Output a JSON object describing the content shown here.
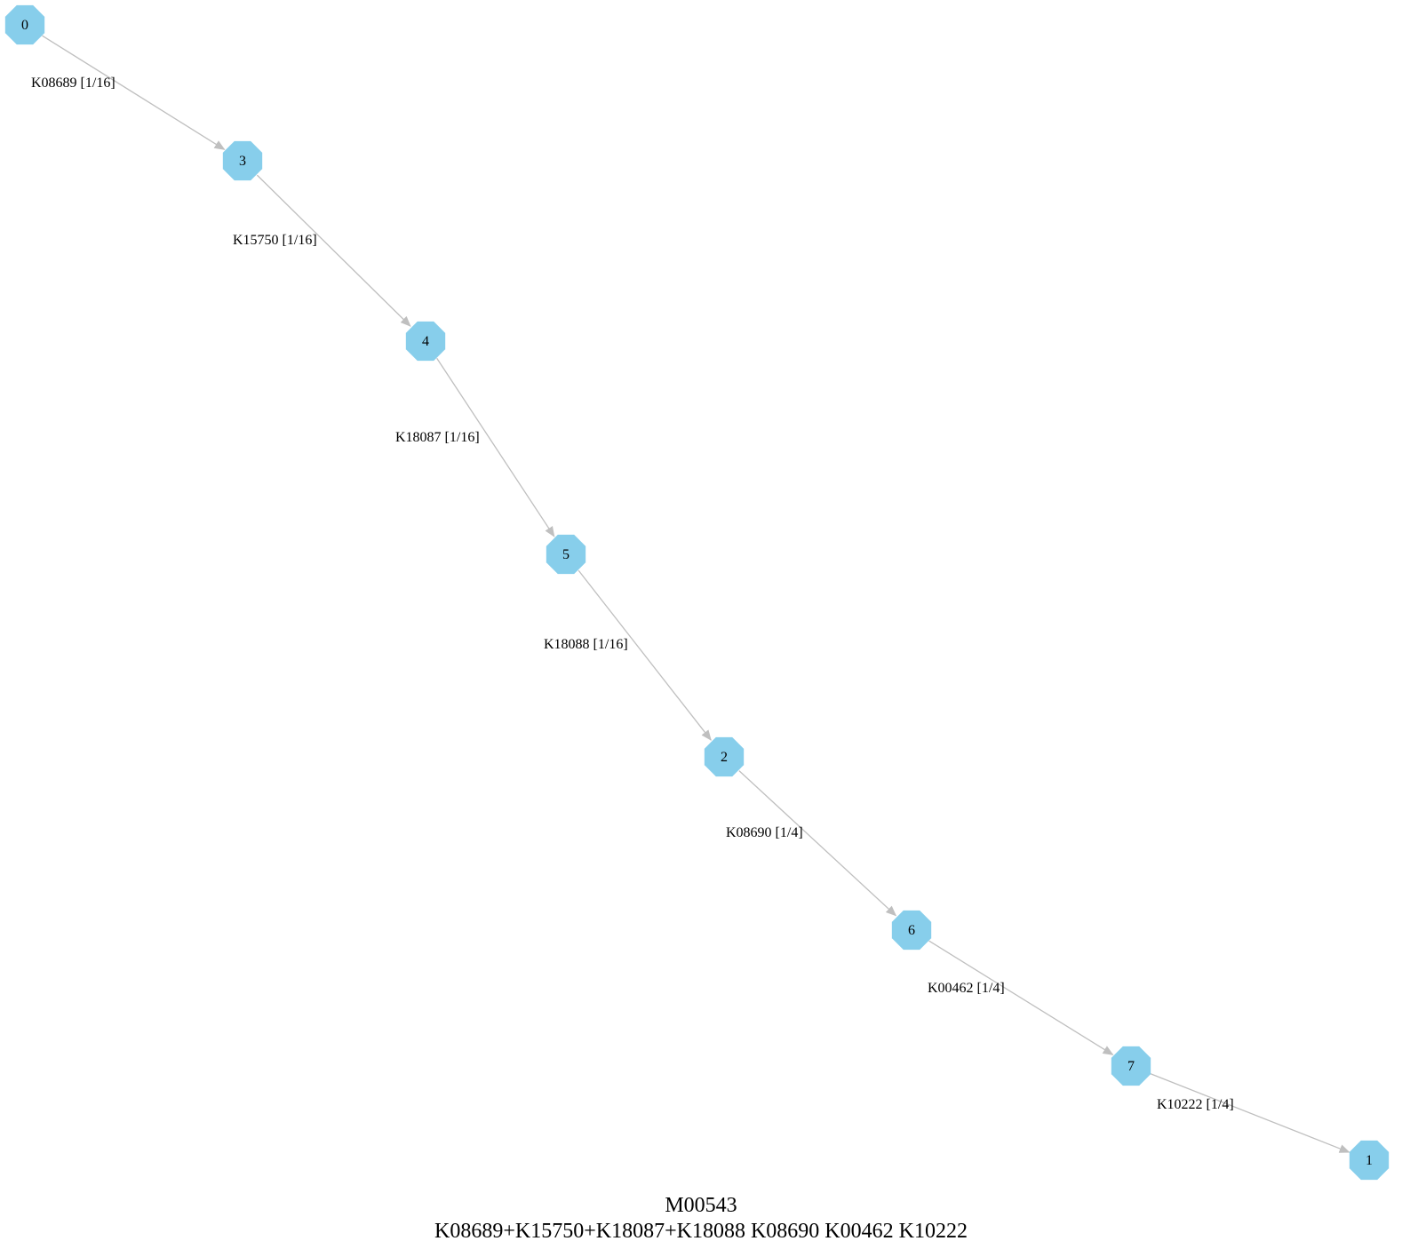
{
  "colors": {
    "node_fill": "#87ceeb",
    "edge": "#bfbfbf",
    "text": "#000000",
    "background": "#ffffff"
  },
  "node_shape": "octagon",
  "nodes": [
    {
      "id": "0"
    },
    {
      "id": "3"
    },
    {
      "id": "4"
    },
    {
      "id": "5"
    },
    {
      "id": "2"
    },
    {
      "id": "6"
    },
    {
      "id": "7"
    },
    {
      "id": "1"
    }
  ],
  "edges": [
    {
      "from": "0",
      "to": "3",
      "label": "K08689 [1/16]"
    },
    {
      "from": "3",
      "to": "4",
      "label": "K15750 [1/16]"
    },
    {
      "from": "4",
      "to": "5",
      "label": "K18087 [1/16]"
    },
    {
      "from": "5",
      "to": "2",
      "label": "K18088 [1/16]"
    },
    {
      "from": "2",
      "to": "6",
      "label": "K08690 [1/4]"
    },
    {
      "from": "6",
      "to": "7",
      "label": "K00462 [1/4]"
    },
    {
      "from": "7",
      "to": "1",
      "label": "K10222 [1/4]"
    }
  ],
  "title": {
    "line1": "M00543",
    "line2": "K08689+K15750+K18087+K18088 K08690 K00462 K10222"
  }
}
